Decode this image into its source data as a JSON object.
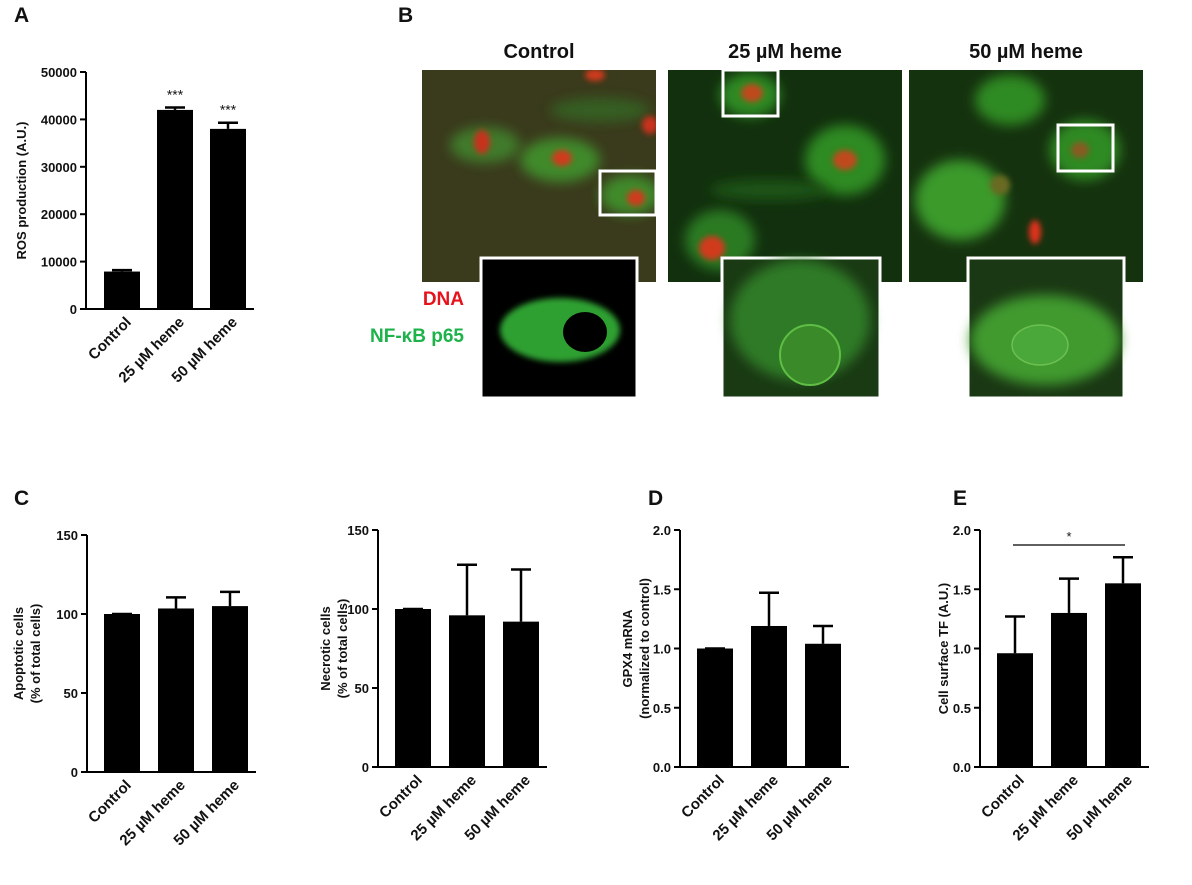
{
  "chart_data": [
    {
      "type": "bar",
      "label": "A",
      "ylabel": [
        "ROS production (A.U.)"
      ],
      "categories": [
        "Control",
        "25 µM heme",
        "50 µM heme"
      ],
      "values": [
        7900,
        42000,
        38000
      ],
      "errors": [
        300,
        500,
        1300
      ],
      "significance": [
        null,
        "***",
        "***"
      ],
      "color": "#000000",
      "ylim": [
        0,
        50000
      ],
      "yticks": [
        0,
        10000,
        20000,
        30000,
        40000,
        50000
      ]
    },
    {
      "type": "bar",
      "label": "C",
      "ylabel": [
        "Apoptotic cells",
        "(% of total cells)"
      ],
      "categories": [
        "Control",
        "25 µM heme",
        "50 µM heme"
      ],
      "values": [
        100,
        103.5,
        105
      ],
      "errors": [
        0,
        7,
        9
      ],
      "color": "#000000",
      "ylim": [
        0,
        150
      ],
      "yticks": [
        0,
        50,
        100,
        150
      ]
    },
    {
      "type": "bar",
      "ylabel": [
        "Necrotic cells",
        "(% of total cells)"
      ],
      "categories": [
        "Control",
        "25 µM heme",
        "50 µM heme"
      ],
      "values": [
        100,
        96,
        92
      ],
      "errors": [
        0,
        32,
        33
      ],
      "color": "#000000",
      "ylim": [
        0,
        150
      ],
      "yticks": [
        0,
        50,
        100,
        150
      ]
    },
    {
      "type": "bar",
      "label": "D",
      "ylabel": [
        "GPX4 mRNA",
        "(normalized to control)"
      ],
      "categories": [
        "Control",
        "25 µM heme",
        "50 µM heme"
      ],
      "values": [
        1.0,
        1.19,
        1.04
      ],
      "errors": [
        0,
        0.28,
        0.15
      ],
      "color": "#000000",
      "ylim": [
        0,
        2
      ],
      "yticks": [
        {
          "value": 0,
          "label": "0.0"
        },
        {
          "value": 0.5,
          "label": "0.5"
        },
        {
          "value": 1,
          "label": "1.0"
        },
        {
          "value": 1.5,
          "label": "1.5"
        },
        {
          "value": 2,
          "label": "2.0"
        }
      ]
    },
    {
      "type": "bar",
      "label": "E",
      "ylabel": [
        "Cell surface TF (A.U.)"
      ],
      "categories": [
        "Control",
        "25 µM heme",
        "50 µM heme"
      ],
      "values": [
        0.96,
        1.3,
        1.55
      ],
      "errors": [
        0.31,
        0.29,
        0.22
      ],
      "bracket": {
        "from": "Control",
        "to": "50 µM heme",
        "text": "*"
      },
      "color": "#000000",
      "ylim": [
        0,
        2
      ],
      "yticks": [
        {
          "value": 0,
          "label": "0.0"
        },
        {
          "value": 0.5,
          "label": "0.5"
        },
        {
          "value": 1,
          "label": "1.0"
        },
        {
          "value": 1.5,
          "label": "1.5"
        },
        {
          "value": 2,
          "label": "2.0"
        }
      ]
    }
  ],
  "panel_b": {
    "label": "B",
    "columns": [
      "Control",
      "25 µM heme",
      "50 µM heme"
    ],
    "legend": [
      {
        "text": "DNA",
        "color": "#e8121c"
      },
      {
        "text": "NF-κB p65",
        "color": "#1db34a"
      }
    ]
  }
}
